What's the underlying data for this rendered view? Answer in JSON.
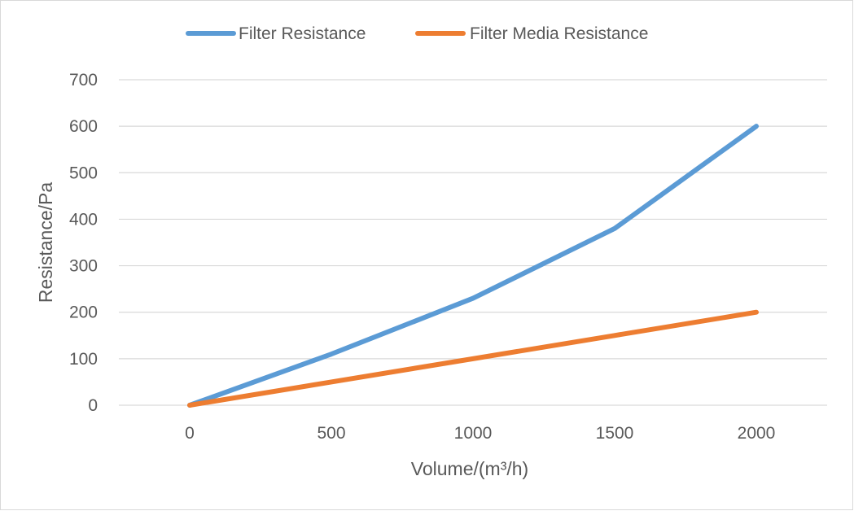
{
  "chart_data": {
    "type": "line",
    "title": "",
    "xlabel": "Volume/(m³/h)",
    "ylabel": "Resistance/Pa",
    "x": [
      0,
      500,
      1000,
      1500,
      2000
    ],
    "x_tick_labels": [
      "0",
      "500",
      "1000",
      "1500",
      "2000"
    ],
    "ylim": [
      0,
      700
    ],
    "y_ticks": [
      0,
      100,
      200,
      300,
      400,
      500,
      600,
      700
    ],
    "grid": true,
    "legend_position": "top-center",
    "series": [
      {
        "name": "Filter Resistance",
        "color": "#5b9bd5",
        "values": [
          0,
          110,
          230,
          380,
          600
        ]
      },
      {
        "name": "Filter Media Resistance",
        "color": "#ed7d31",
        "values": [
          0,
          50,
          100,
          150,
          200
        ]
      }
    ]
  }
}
